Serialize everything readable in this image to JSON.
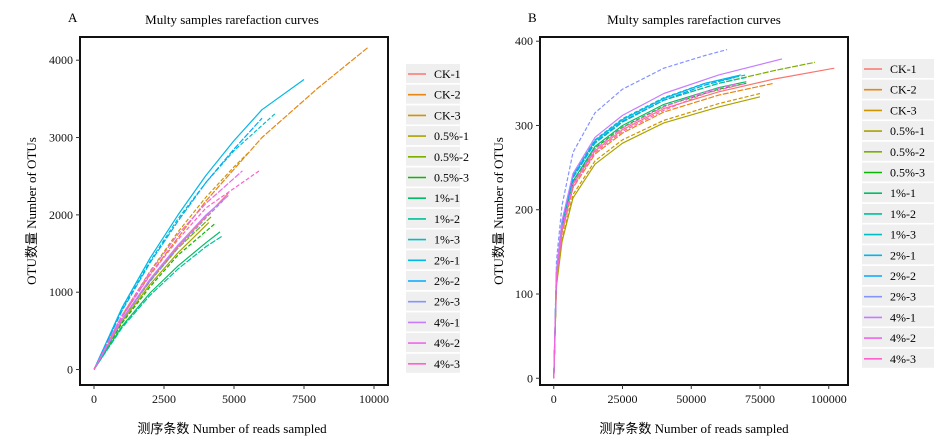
{
  "figure": {
    "panels": [
      "A",
      "B"
    ],
    "legend_entries": [
      "CK-1",
      "CK-2",
      "CK-3",
      "0.5%-1",
      "0.5%-2",
      "0.5%-3",
      "1%-1",
      "1%-2",
      "1%-3",
      "2%-1",
      "2%-2",
      "2%-3",
      "4%-1",
      "4%-2",
      "4%-3"
    ],
    "series_colors": [
      "#f8766d",
      "#e68613",
      "#cd9600",
      "#aba300",
      "#7cae00",
      "#0cb702",
      "#00be67",
      "#00c19a",
      "#00bfc4",
      "#00b8e7",
      "#00a9ff",
      "#8494ff",
      "#c77cff",
      "#ed68ed",
      "#ff61cc"
    ]
  },
  "chart_data": [
    {
      "type": "line",
      "panel": "A",
      "title": "Multy samples rarefaction curves",
      "xlabel": "测序条数 Number of reads sampled",
      "ylabel": "OTU数量 Number of OTUs",
      "xlim": [
        -500,
        10500
      ],
      "ylim": [
        -200,
        4300
      ],
      "xticks": [
        0,
        2500,
        5000,
        7500,
        10000
      ],
      "yticks": [
        0,
        1000,
        2000,
        3000,
        4000
      ],
      "grid": false,
      "legend": "right",
      "series": [
        {
          "name": "CK-1",
          "x": [
            0,
            1000,
            2000,
            3000,
            4000,
            4800
          ],
          "y": [
            0,
            650,
            1150,
            1590,
            1980,
            2280
          ]
        },
        {
          "name": "CK-2",
          "x": [
            0,
            1000,
            2000,
            4000,
            6000,
            8000,
            9800
          ],
          "y": [
            0,
            680,
            1230,
            2180,
            3000,
            3640,
            4170
          ]
        },
        {
          "name": "CK-3",
          "x": [
            0,
            1000,
            2000,
            3000,
            4000,
            5000,
            5500
          ],
          "y": [
            0,
            700,
            1270,
            1780,
            2230,
            2620,
            2800
          ]
        },
        {
          "name": "0.5%-1",
          "x": [
            0,
            1000,
            2000,
            3000,
            4100
          ],
          "y": [
            0,
            620,
            1100,
            1510,
            1900
          ]
        },
        {
          "name": "0.5%-2",
          "x": [
            0,
            1000,
            2000,
            3000,
            4200
          ],
          "y": [
            0,
            640,
            1140,
            1570,
            1980
          ]
        },
        {
          "name": "0.5%-3",
          "x": [
            0,
            1000,
            2000,
            3000,
            4300
          ],
          "y": [
            0,
            600,
            1070,
            1480,
            1880
          ]
        },
        {
          "name": "1%-1",
          "x": [
            0,
            1000,
            2000,
            3000,
            4000,
            4500
          ],
          "y": [
            0,
            560,
            990,
            1340,
            1640,
            1780
          ]
        },
        {
          "name": "1%-2",
          "x": [
            0,
            1000,
            2000,
            3000,
            4000,
            4600
          ],
          "y": [
            0,
            540,
            960,
            1300,
            1590,
            1730
          ]
        },
        {
          "name": "1%-3",
          "x": [
            0,
            1000,
            2000,
            3000,
            4000,
            5000,
            6500
          ],
          "y": [
            0,
            780,
            1400,
            1950,
            2420,
            2830,
            3320
          ]
        },
        {
          "name": "2%-1",
          "x": [
            0,
            1000,
            2000,
            3000,
            4000,
            5000,
            6000,
            7500
          ],
          "y": [
            0,
            800,
            1440,
            2000,
            2510,
            2960,
            3360,
            3750
          ]
        },
        {
          "name": "2%-2",
          "x": [
            0,
            1000,
            2000,
            3000,
            4000,
            5000,
            6000
          ],
          "y": [
            0,
            760,
            1380,
            1920,
            2420,
            2850,
            3250
          ]
        },
        {
          "name": "2%-3",
          "x": [
            0,
            1000,
            2000,
            3000,
            4000,
            4600
          ],
          "y": [
            0,
            640,
            1150,
            1570,
            1960,
            2180
          ]
        },
        {
          "name": "4%-1",
          "x": [
            0,
            1000,
            2000,
            3000,
            4000,
            4800
          ],
          "y": [
            0,
            650,
            1170,
            1610,
            2000,
            2250
          ]
        },
        {
          "name": "4%-2",
          "x": [
            0,
            1000,
            2000,
            3000,
            4000,
            5300
          ],
          "y": [
            0,
            700,
            1260,
            1750,
            2150,
            2570
          ]
        },
        {
          "name": "4%-3",
          "x": [
            0,
            1000,
            2000,
            3000,
            4000,
            5900
          ],
          "y": [
            0,
            680,
            1220,
            1680,
            2090,
            2570
          ]
        }
      ]
    },
    {
      "type": "line",
      "panel": "B",
      "title": "Multy samples rarefaction curves",
      "xlabel": "测序条数 Number of reads sampled",
      "ylabel": "OTU数量 Number of OTUs",
      "xlim": [
        -5000,
        107000
      ],
      "ylim": [
        -8,
        405
      ],
      "xticks": [
        0,
        25000,
        50000,
        75000,
        100000
      ],
      "yticks": [
        0,
        100,
        200,
        300,
        400
      ],
      "grid": false,
      "legend": "right",
      "series": [
        {
          "name": "CK-1",
          "x": [
            0,
            1000,
            3000,
            7000,
            15000,
            25000,
            40000,
            60000,
            80000,
            102000
          ],
          "y": [
            0,
            120,
            175,
            230,
            270,
            295,
            320,
            340,
            355,
            368
          ]
        },
        {
          "name": "CK-2",
          "x": [
            0,
            1000,
            3000,
            7000,
            15000,
            25000,
            40000,
            60000,
            80000
          ],
          "y": [
            0,
            118,
            172,
            226,
            266,
            291,
            316,
            336,
            350
          ]
        },
        {
          "name": "CK-3",
          "x": [
            0,
            1000,
            3000,
            7000,
            15000,
            25000,
            40000,
            60000,
            75000
          ],
          "y": [
            0,
            112,
            165,
            218,
            258,
            283,
            306,
            326,
            338
          ]
        },
        {
          "name": "0.5%-1",
          "x": [
            0,
            1000,
            3000,
            7000,
            15000,
            25000,
            40000,
            60000,
            75000
          ],
          "y": [
            0,
            110,
            162,
            214,
            254,
            279,
            303,
            322,
            334
          ]
        },
        {
          "name": "0.5%-2",
          "x": [
            0,
            1000,
            3000,
            7000,
            15000,
            25000,
            40000,
            60000,
            80000,
            95000
          ],
          "y": [
            0,
            125,
            182,
            238,
            280,
            305,
            330,
            350,
            365,
            375
          ]
        },
        {
          "name": "0.5%-3",
          "x": [
            0,
            1000,
            3000,
            7000,
            15000,
            25000,
            40000,
            60000,
            70000
          ],
          "y": [
            0,
            122,
            178,
            232,
            273,
            298,
            323,
            343,
            350
          ]
        },
        {
          "name": "1%-1",
          "x": [
            0,
            1000,
            3000,
            7000,
            15000,
            25000,
            40000,
            60000,
            70000
          ],
          "y": [
            0,
            124,
            180,
            234,
            275,
            300,
            325,
            345,
            352
          ]
        },
        {
          "name": "1%-2",
          "x": [
            0,
            1000,
            3000,
            7000,
            15000,
            25000,
            40000,
            60000,
            70000
          ],
          "y": [
            0,
            126,
            183,
            238,
            279,
            304,
            330,
            350,
            357
          ]
        },
        {
          "name": "1%-3",
          "x": [
            0,
            1000,
            3000,
            7000,
            15000,
            25000,
            40000,
            55000,
            70000
          ],
          "y": [
            0,
            128,
            186,
            241,
            283,
            308,
            333,
            350,
            360
          ]
        },
        {
          "name": "2%-1",
          "x": [
            0,
            1000,
            3000,
            7000,
            15000,
            25000,
            40000,
            55000,
            68000
          ],
          "y": [
            0,
            127,
            185,
            240,
            282,
            307,
            332,
            350,
            360
          ]
        },
        {
          "name": "2%-2",
          "x": [
            0,
            1000,
            3000,
            7000,
            15000,
            25000,
            40000,
            55000,
            66000
          ],
          "y": [
            0,
            126,
            184,
            238,
            280,
            305,
            330,
            348,
            357
          ]
        },
        {
          "name": "2%-3",
          "x": [
            0,
            1000,
            3000,
            7000,
            15000,
            25000,
            40000,
            55000,
            63000
          ],
          "y": [
            0,
            140,
            205,
            268,
            315,
            343,
            368,
            383,
            390
          ]
        },
        {
          "name": "4%-1",
          "x": [
            0,
            1000,
            3000,
            7000,
            15000,
            25000,
            40000,
            60000,
            83000
          ],
          "y": [
            0,
            128,
            187,
            243,
            286,
            312,
            338,
            360,
            379
          ]
        },
        {
          "name": "4%-2",
          "x": [
            0,
            1000,
            3000,
            7000,
            15000,
            25000,
            40000,
            55000,
            66000
          ],
          "y": [
            0,
            121,
            177,
            231,
            272,
            297,
            322,
            340,
            349
          ]
        },
        {
          "name": "4%-3",
          "x": [
            0,
            1000,
            3000,
            7000,
            15000,
            25000,
            40000,
            55000,
            70000
          ],
          "y": [
            0,
            119,
            174,
            227,
            268,
            293,
            318,
            338,
            350
          ]
        }
      ]
    }
  ]
}
